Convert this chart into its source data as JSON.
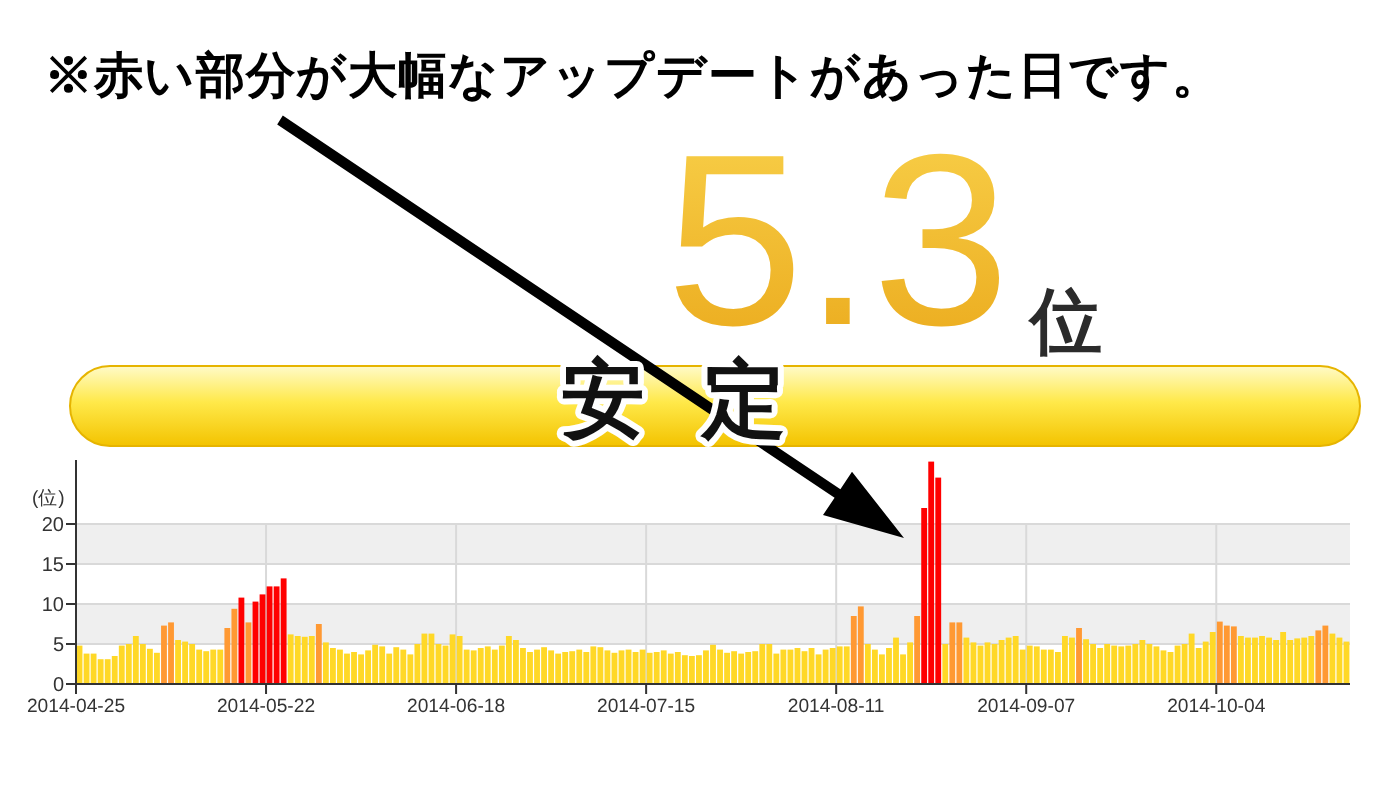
{
  "chart_data": [
    {
      "type": "other",
      "annotations": [
        "5.3",
        "位",
        "安 定"
      ]
    },
    {
      "type": "bar",
      "ylabel": "(位)",
      "annotations": [
        "※赤い部分が大幅なアップデートがあった日です。"
      ],
      "x": [
        "2014-04-25",
        "2014-04-26",
        "2014-04-27",
        "2014-04-28",
        "2014-04-29",
        "2014-04-30",
        "2014-05-01",
        "2014-05-02",
        "2014-05-03",
        "2014-05-04",
        "2014-05-05",
        "2014-05-06",
        "2014-05-07",
        "2014-05-08",
        "2014-05-09",
        "2014-05-10",
        "2014-05-11",
        "2014-05-12",
        "2014-05-13",
        "2014-05-14",
        "2014-05-15",
        "2014-05-16",
        "2014-05-17",
        "2014-05-18",
        "2014-05-19",
        "2014-05-20",
        "2014-05-21",
        "2014-05-22",
        "2014-05-23",
        "2014-05-24",
        "2014-05-25",
        "2014-05-26",
        "2014-05-27",
        "2014-05-28",
        "2014-05-29",
        "2014-05-30",
        "2014-05-31",
        "2014-06-01",
        "2014-06-02",
        "2014-06-03",
        "2014-06-04",
        "2014-06-05",
        "2014-06-06",
        "2014-06-07",
        "2014-06-08",
        "2014-06-09",
        "2014-06-10",
        "2014-06-11",
        "2014-06-12",
        "2014-06-13",
        "2014-06-14",
        "2014-06-15",
        "2014-06-16",
        "2014-06-17",
        "2014-06-18",
        "2014-06-19",
        "2014-06-20",
        "2014-06-21",
        "2014-06-22",
        "2014-06-23",
        "2014-06-24",
        "2014-06-25",
        "2014-06-26",
        "2014-06-27",
        "2014-06-28",
        "2014-06-29",
        "2014-06-30",
        "2014-07-01",
        "2014-07-02",
        "2014-07-03",
        "2014-07-04",
        "2014-07-05",
        "2014-07-06",
        "2014-07-07",
        "2014-07-08",
        "2014-07-09",
        "2014-07-10",
        "2014-07-11",
        "2014-07-12",
        "2014-07-13",
        "2014-07-14",
        "2014-07-15",
        "2014-07-16",
        "2014-07-17",
        "2014-07-18",
        "2014-07-19",
        "2014-07-20",
        "2014-07-21",
        "2014-07-22",
        "2014-07-23",
        "2014-07-24",
        "2014-07-25",
        "2014-07-26",
        "2014-07-27",
        "2014-07-28",
        "2014-07-29",
        "2014-07-30",
        "2014-07-31",
        "2014-08-01",
        "2014-08-02",
        "2014-08-03",
        "2014-08-04",
        "2014-08-05",
        "2014-08-06",
        "2014-08-07",
        "2014-08-08",
        "2014-08-09",
        "2014-08-10",
        "2014-08-11",
        "2014-08-12",
        "2014-08-13",
        "2014-08-14",
        "2014-08-15",
        "2014-08-16",
        "2014-08-17",
        "2014-08-18",
        "2014-08-19",
        "2014-08-20",
        "2014-08-21",
        "2014-08-22",
        "2014-08-23",
        "2014-08-24",
        "2014-08-25",
        "2014-08-26",
        "2014-08-27",
        "2014-08-28",
        "2014-08-29",
        "2014-08-30",
        "2014-08-31",
        "2014-09-01",
        "2014-09-02",
        "2014-09-03",
        "2014-09-04",
        "2014-09-05",
        "2014-09-06",
        "2014-09-07",
        "2014-09-08",
        "2014-09-09",
        "2014-09-10",
        "2014-09-11",
        "2014-09-12",
        "2014-09-13",
        "2014-09-14",
        "2014-09-15",
        "2014-09-16",
        "2014-09-17",
        "2014-09-18",
        "2014-09-19",
        "2014-09-20",
        "2014-09-21",
        "2014-09-22",
        "2014-09-23",
        "2014-09-24",
        "2014-09-25",
        "2014-09-26",
        "2014-09-27",
        "2014-09-28",
        "2014-09-29",
        "2014-09-30",
        "2014-10-01",
        "2014-10-02",
        "2014-10-03",
        "2014-10-04",
        "2014-10-05",
        "2014-10-06",
        "2014-10-07",
        "2014-10-08",
        "2014-10-09",
        "2014-10-10",
        "2014-10-11",
        "2014-10-12",
        "2014-10-13",
        "2014-10-14",
        "2014-10-15",
        "2014-10-16",
        "2014-10-17",
        "2014-10-18",
        "2014-10-19",
        "2014-10-20",
        "2014-10-21",
        "2014-10-22"
      ],
      "values": [
        4.8,
        3.8,
        3.8,
        3.1,
        3.1,
        3.5,
        4.8,
        5.0,
        6.0,
        5.0,
        4.4,
        3.9,
        7.3,
        7.7,
        5.5,
        5.3,
        5.0,
        4.3,
        4.1,
        4.3,
        4.3,
        7.0,
        9.4,
        10.8,
        7.7,
        10.3,
        11.2,
        12.2,
        12.2,
        13.2,
        6.2,
        6.0,
        5.9,
        6.0,
        7.5,
        5.2,
        4.5,
        4.3,
        3.8,
        4.0,
        3.7,
        4.2,
        4.9,
        4.7,
        3.8,
        4.6,
        4.3,
        3.7,
        5.0,
        6.3,
        6.3,
        5.0,
        4.8,
        6.2,
        6.0,
        4.3,
        4.2,
        4.5,
        4.7,
        4.3,
        4.8,
        6.0,
        5.5,
        4.5,
        4.0,
        4.3,
        4.6,
        4.2,
        3.8,
        4.0,
        4.1,
        4.3,
        4.0,
        4.7,
        4.6,
        4.2,
        3.9,
        4.2,
        4.3,
        4.0,
        4.3,
        3.9,
        4.0,
        4.2,
        3.8,
        4.0,
        3.6,
        3.5,
        3.6,
        4.2,
        4.9,
        4.3,
        3.9,
        4.1,
        3.8,
        4.0,
        4.1,
        5.0,
        5.0,
        3.8,
        4.3,
        4.3,
        4.5,
        4.1,
        4.5,
        3.7,
        4.3,
        4.5,
        4.7,
        4.7,
        8.5,
        9.7,
        5.0,
        4.3,
        3.7,
        4.5,
        5.8,
        3.7,
        5.2,
        8.5,
        22.0,
        27.8,
        25.8,
        5.0,
        7.7,
        7.7,
        5.8,
        5.2,
        4.8,
        5.2,
        5.0,
        5.5,
        5.8,
        6.0,
        4.3,
        4.8,
        4.7,
        4.3,
        4.3,
        4.0,
        6.0,
        5.8,
        7.0,
        5.6,
        5.0,
        4.5,
        5.0,
        4.8,
        4.7,
        4.8,
        5.0,
        5.5,
        5.0,
        4.7,
        4.2,
        4.0,
        4.8,
        5.0,
        6.3,
        4.5,
        5.3,
        6.5,
        7.8,
        7.3,
        7.2,
        6.0,
        5.8,
        5.8,
        6.0,
        5.8,
        5.5,
        6.5,
        5.5,
        5.7,
        5.8,
        6.0,
        6.7,
        7.3,
        6.3,
        5.8,
        5.3
      ],
      "colors": [
        "#ffd827",
        "#ffd827",
        "#ffd827",
        "#ffd827",
        "#ffd827",
        "#ffd827",
        "#ffd827",
        "#ffd827",
        "#ffd827",
        "#ffd827",
        "#ffd827",
        "#ffd827",
        "#ff9933",
        "#ff9933",
        "#ffd827",
        "#ffd827",
        "#ffd827",
        "#ffd827",
        "#ffd827",
        "#ffd827",
        "#ffd827",
        "#ff9933",
        "#ff9933",
        "#ff0000",
        "#ff9933",
        "#ff0000",
        "#ff0000",
        "#ff0000",
        "#ff0000",
        "#ff0000",
        "#ffd827",
        "#ffd827",
        "#ffd827",
        "#ffd827",
        "#ff9933",
        "#ffd827",
        "#ffd827",
        "#ffd827",
        "#ffd827",
        "#ffd827",
        "#ffd827",
        "#ffd827",
        "#ffd827",
        "#ffd827",
        "#ffd827",
        "#ffd827",
        "#ffd827",
        "#ffd827",
        "#ffd827",
        "#ffd827",
        "#ffd827",
        "#ffd827",
        "#ffd827",
        "#ffd827",
        "#ffd827",
        "#ffd827",
        "#ffd827",
        "#ffd827",
        "#ffd827",
        "#ffd827",
        "#ffd827",
        "#ffd827",
        "#ffd827",
        "#ffd827",
        "#ffd827",
        "#ffd827",
        "#ffd827",
        "#ffd827",
        "#ffd827",
        "#ffd827",
        "#ffd827",
        "#ffd827",
        "#ffd827",
        "#ffd827",
        "#ffd827",
        "#ffd827",
        "#ffd827",
        "#ffd827",
        "#ffd827",
        "#ffd827",
        "#ffd827",
        "#ffd827",
        "#ffd827",
        "#ffd827",
        "#ffd827",
        "#ffd827",
        "#ffd827",
        "#ffd827",
        "#ffd827",
        "#ffd827",
        "#ffd827",
        "#ffd827",
        "#ffd827",
        "#ffd827",
        "#ffd827",
        "#ffd827",
        "#ffd827",
        "#ffd827",
        "#ffd827",
        "#ffd827",
        "#ffd827",
        "#ffd827",
        "#ffd827",
        "#ffd827",
        "#ffd827",
        "#ffd827",
        "#ffd827",
        "#ffd827",
        "#ffd827",
        "#ffd827",
        "#ff9933",
        "#ff9933",
        "#ffd827",
        "#ffd827",
        "#ffd827",
        "#ffd827",
        "#ffd827",
        "#ffd827",
        "#ffd827",
        "#ff9933",
        "#ff0000",
        "#ff0000",
        "#ff0000",
        "#ffd827",
        "#ff9933",
        "#ff9933",
        "#ffd827",
        "#ffd827",
        "#ffd827",
        "#ffd827",
        "#ffd827",
        "#ffd827",
        "#ffd827",
        "#ffd827",
        "#ffd827",
        "#ffd827",
        "#ffd827",
        "#ffd827",
        "#ffd827",
        "#ffd827",
        "#ffd827",
        "#ffd827",
        "#ff9933",
        "#ffd827",
        "#ffd827",
        "#ffd827",
        "#ffd827",
        "#ffd827",
        "#ffd827",
        "#ffd827",
        "#ffd827",
        "#ffd827",
        "#ffd827",
        "#ffd827",
        "#ffd827",
        "#ffd827",
        "#ffd827",
        "#ffd827",
        "#ffd827",
        "#ffd827",
        "#ffd827",
        "#ffd827",
        "#ff9933",
        "#ff9933",
        "#ff9933",
        "#ffd827",
        "#ffd827",
        "#ffd827",
        "#ffd827",
        "#ffd827",
        "#ffd827",
        "#ffd827",
        "#ffd827",
        "#ffd827",
        "#ffd827",
        "#ffd827",
        "#ff9933",
        "#ff9933",
        "#ffd827",
        "#ffd827",
        "#ffd827"
      ],
      "xlim": [
        "2014-04-25",
        "2014-10-23"
      ],
      "xticks": [
        "2014-04-25",
        "2014-05-22",
        "2014-06-18",
        "2014-07-15",
        "2014-08-11",
        "2014-09-07",
        "2014-10-04"
      ],
      "ylim": [
        0,
        28
      ],
      "yticks": [
        0,
        5,
        10,
        15,
        20
      ],
      "grid": true,
      "bands": [
        {
          "axis": "y",
          "from": 5,
          "to": 10,
          "color": "#efefef"
        },
        {
          "axis": "y",
          "from": 15,
          "to": 20,
          "color": "#efefef"
        }
      ]
    }
  ]
}
